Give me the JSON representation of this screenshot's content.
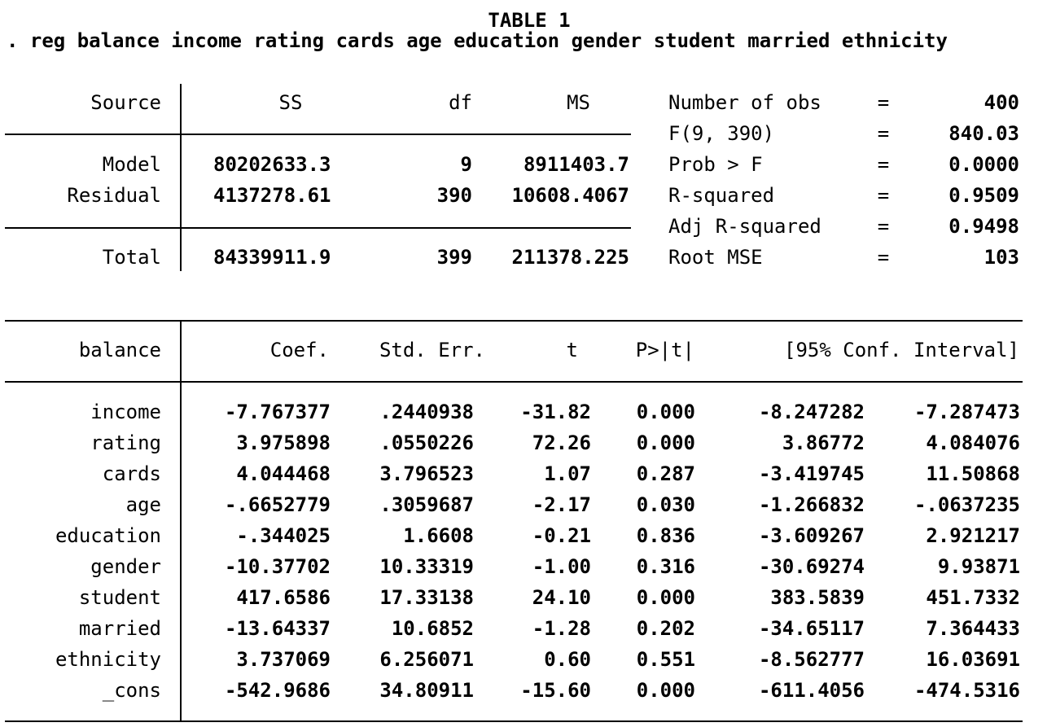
{
  "title": "TABLE 1",
  "command": ". reg balance income rating cards age education gender student married ethnicity",
  "anova": {
    "headers": [
      "Source",
      "SS",
      "df",
      "MS"
    ],
    "rows": [
      {
        "source": "Model",
        "ss": "80202633.3",
        "df": "9",
        "ms": "8911403.7"
      },
      {
        "source": "Residual",
        "ss": "4137278.61",
        "df": "390",
        "ms": "10608.4067"
      }
    ],
    "total": {
      "source": "Total",
      "ss": "84339911.9",
      "df": "399",
      "ms": "211378.225"
    }
  },
  "stats": [
    {
      "label": "Number of obs",
      "eq": "=",
      "value": "400"
    },
    {
      "label": "F(9, 390)",
      "eq": "=",
      "value": "840.03"
    },
    {
      "label": "Prob > F",
      "eq": "=",
      "value": "0.0000"
    },
    {
      "label": "R-squared",
      "eq": "=",
      "value": "0.9509"
    },
    {
      "label": "Adj R-squared",
      "eq": "=",
      "value": "0.9498"
    },
    {
      "label": "Root MSE",
      "eq": "=",
      "value": "103"
    }
  ],
  "coef": {
    "headers": [
      "balance",
      "Coef.",
      "Std. Err.",
      "t",
      "P>|t|",
      "[95% Conf. Interval]"
    ],
    "rows": [
      {
        "var": "income",
        "coef": "-7.767377",
        "se": ".2440938",
        "t": "-31.82",
        "p": "0.000",
        "lo": "-8.247282",
        "hi": "-7.287473"
      },
      {
        "var": "rating",
        "coef": "3.975898",
        "se": ".0550226",
        "t": "72.26",
        "p": "0.000",
        "lo": "3.86772",
        "hi": "4.084076"
      },
      {
        "var": "cards",
        "coef": "4.044468",
        "se": "3.796523",
        "t": "1.07",
        "p": "0.287",
        "lo": "-3.419745",
        "hi": "11.50868"
      },
      {
        "var": "age",
        "coef": "-.6652779",
        "se": ".3059687",
        "t": "-2.17",
        "p": "0.030",
        "lo": "-1.266832",
        "hi": "-.0637235"
      },
      {
        "var": "education",
        "coef": "-.344025",
        "se": "1.6608",
        "t": "-0.21",
        "p": "0.836",
        "lo": "-3.609267",
        "hi": "2.921217"
      },
      {
        "var": "gender",
        "coef": "-10.37702",
        "se": "10.33319",
        "t": "-1.00",
        "p": "0.316",
        "lo": "-30.69274",
        "hi": "9.93871"
      },
      {
        "var": "student",
        "coef": "417.6586",
        "se": "17.33138",
        "t": "24.10",
        "p": "0.000",
        "lo": "383.5839",
        "hi": "451.7332"
      },
      {
        "var": "married",
        "coef": "-13.64337",
        "se": "10.6852",
        "t": "-1.28",
        "p": "0.202",
        "lo": "-34.65117",
        "hi": "7.364433"
      },
      {
        "var": "ethnicity",
        "coef": "3.737069",
        "se": "6.256071",
        "t": "0.60",
        "p": "0.551",
        "lo": "-8.562777",
        "hi": "16.03691"
      },
      {
        "var": "_cons",
        "coef": "-542.9686",
        "se": "34.80911",
        "t": "-15.60",
        "p": "0.000",
        "lo": "-611.4056",
        "hi": "-474.5316"
      }
    ]
  }
}
